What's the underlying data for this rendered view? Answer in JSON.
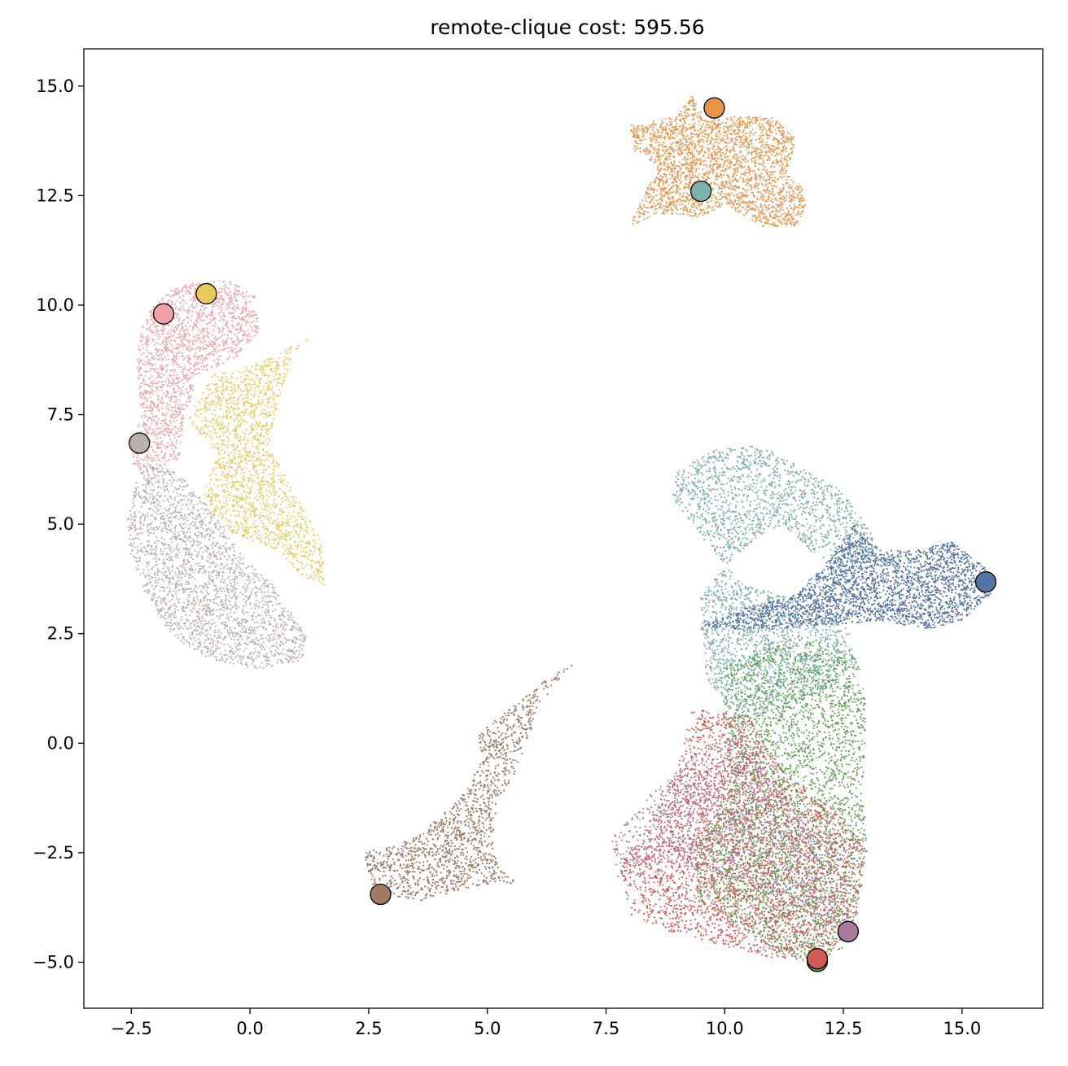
{
  "chart_data": {
    "type": "scatter",
    "title": "remote-clique cost: 595.56",
    "xlabel": "",
    "ylabel": "",
    "xlim": [
      -3.5,
      16.7
    ],
    "ylim": [
      -6.05,
      15.85
    ],
    "xticks": [
      -2.5,
      0.0,
      2.5,
      5.0,
      7.5,
      10.0,
      12.5,
      15.0
    ],
    "xtick_labels": [
      "−2.5",
      "0.0",
      "2.5",
      "5.0",
      "7.5",
      "10.0",
      "12.5",
      "15.0"
    ],
    "yticks": [
      -5.0,
      -2.5,
      0.0,
      2.5,
      5.0,
      7.5,
      10.0,
      12.5,
      15.0
    ],
    "ytick_labels": [
      "−5.0",
      "−2.5",
      "0.0",
      "2.5",
      "5.0",
      "7.5",
      "10.0",
      "12.5",
      "15.0"
    ],
    "grid": false,
    "legend": "none",
    "clusters": [
      {
        "color": "#e8954a",
        "region": [
          [
            8.0,
            14.1
          ],
          [
            9.0,
            14.3
          ],
          [
            9.3,
            14.8
          ],
          [
            9.6,
            14.2
          ],
          [
            10.2,
            14.3
          ],
          [
            11.0,
            14.3
          ],
          [
            11.5,
            13.8
          ],
          [
            11.3,
            13.0
          ],
          [
            11.7,
            12.6
          ],
          [
            11.7,
            12.2
          ],
          [
            11.5,
            11.8
          ],
          [
            10.8,
            11.8
          ],
          [
            10.0,
            12.3
          ],
          [
            9.5,
            12.0
          ],
          [
            8.6,
            12.1
          ],
          [
            8.0,
            11.8
          ],
          [
            8.3,
            12.5
          ],
          [
            8.6,
            13.2
          ],
          [
            8.1,
            13.5
          ]
        ],
        "count": 2600
      },
      {
        "color": "#f0a2a7",
        "region": [
          [
            -2.2,
            9.8
          ],
          [
            -1.6,
            10.4
          ],
          [
            -0.7,
            10.6
          ],
          [
            -0.3,
            10.5
          ],
          [
            0.1,
            10.2
          ],
          [
            0.2,
            9.4
          ],
          [
            -0.3,
            8.8
          ],
          [
            -1.1,
            8.4
          ],
          [
            -1.4,
            7.3
          ],
          [
            -1.5,
            6.5
          ],
          [
            -2.1,
            6.2
          ],
          [
            -2.5,
            6.4
          ],
          [
            -2.3,
            7.6
          ],
          [
            -2.4,
            8.8
          ]
        ],
        "count": 1700
      },
      {
        "color": "#e8c95a",
        "region": [
          [
            -0.8,
            8.4
          ],
          [
            0.0,
            8.6
          ],
          [
            0.6,
            8.9
          ],
          [
            1.3,
            9.3
          ],
          [
            1.7,
            9.7
          ],
          [
            0.9,
            8.9
          ],
          [
            0.6,
            7.8
          ],
          [
            0.4,
            6.8
          ],
          [
            1.0,
            5.6
          ],
          [
            1.5,
            4.6
          ],
          [
            1.6,
            3.6
          ],
          [
            1.1,
            3.8
          ],
          [
            0.6,
            4.4
          ],
          [
            -0.4,
            4.8
          ],
          [
            -1.0,
            5.6
          ],
          [
            -0.7,
            6.6
          ],
          [
            -1.3,
            7.4
          ]
        ],
        "count": 1700
      },
      {
        "color": "#b9b0ab",
        "region": [
          [
            -2.6,
            5.0
          ],
          [
            -2.3,
            6.4
          ],
          [
            -1.5,
            6.2
          ],
          [
            -0.8,
            5.3
          ],
          [
            -0.1,
            4.2
          ],
          [
            0.6,
            3.5
          ],
          [
            1.2,
            2.4
          ],
          [
            1.1,
            1.9
          ],
          [
            0.2,
            1.7
          ],
          [
            -0.8,
            1.9
          ],
          [
            -1.6,
            2.4
          ],
          [
            -2.2,
            3.4
          ],
          [
            -2.5,
            4.2
          ]
        ],
        "count": 2300
      },
      {
        "color": "#a07a62",
        "region": [
          [
            2.4,
            -2.5
          ],
          [
            3.4,
            -2.2
          ],
          [
            4.4,
            -1.3
          ],
          [
            4.9,
            -0.4
          ],
          [
            4.8,
            0.2
          ],
          [
            5.5,
            0.8
          ],
          [
            6.3,
            1.5
          ],
          [
            6.8,
            1.8
          ],
          [
            6.1,
            0.9
          ],
          [
            5.7,
            -0.4
          ],
          [
            5.2,
            -1.5
          ],
          [
            5.1,
            -2.5
          ],
          [
            5.6,
            -3.2
          ],
          [
            4.6,
            -3.3
          ],
          [
            3.6,
            -3.6
          ],
          [
            2.6,
            -3.4
          ]
        ],
        "count": 2300
      },
      {
        "color": "#7fb1ad",
        "region": [
          [
            9.0,
            6.2
          ],
          [
            9.8,
            6.7
          ],
          [
            10.7,
            6.8
          ],
          [
            11.6,
            6.3
          ],
          [
            12.4,
            5.8
          ],
          [
            13.0,
            5.0
          ],
          [
            13.3,
            4.3
          ],
          [
            12.5,
            4.0
          ],
          [
            11.8,
            4.4
          ],
          [
            11.2,
            5.0
          ],
          [
            10.6,
            4.6
          ],
          [
            10.0,
            4.0
          ],
          [
            9.5,
            3.5
          ],
          [
            9.5,
            2.7
          ],
          [
            9.6,
            1.5
          ],
          [
            10.2,
            0.5
          ],
          [
            11.2,
            0.8
          ],
          [
            12.1,
            1.2
          ],
          [
            12.8,
            1.7
          ],
          [
            12.6,
            2.6
          ],
          [
            11.5,
            3.3
          ],
          [
            10.4,
            3.6
          ],
          [
            9.6,
            4.6
          ],
          [
            8.9,
            5.6
          ]
        ],
        "count": 4400
      },
      {
        "color": "#5574a5",
        "region": [
          [
            9.5,
            2.7
          ],
          [
            10.5,
            3.1
          ],
          [
            11.5,
            3.4
          ],
          [
            12.3,
            4.3
          ],
          [
            12.7,
            5.0
          ],
          [
            13.3,
            4.4
          ],
          [
            14.0,
            4.4
          ],
          [
            14.8,
            4.6
          ],
          [
            15.5,
            4.0
          ],
          [
            15.6,
            3.4
          ],
          [
            15.0,
            2.8
          ],
          [
            14.3,
            2.6
          ],
          [
            13.3,
            2.8
          ],
          [
            12.2,
            2.7
          ],
          [
            11.0,
            2.6
          ],
          [
            10.0,
            2.6
          ]
        ],
        "count": 3600
      },
      {
        "color": "#5ea052",
        "region": [
          [
            10.0,
            1.8
          ],
          [
            11.0,
            2.2
          ],
          [
            12.0,
            2.4
          ],
          [
            12.8,
            1.9
          ],
          [
            13.0,
            0.8
          ],
          [
            12.9,
            -1.0
          ],
          [
            13.0,
            -2.2
          ],
          [
            12.8,
            -3.6
          ],
          [
            12.6,
            -4.6
          ],
          [
            12.0,
            -5.0
          ],
          [
            11.2,
            -4.8
          ],
          [
            10.3,
            -4.2
          ],
          [
            9.4,
            -3.6
          ],
          [
            9.4,
            -2.4
          ],
          [
            10.1,
            -1.0
          ],
          [
            10.0,
            0.4
          ]
        ],
        "count": 3800
      },
      {
        "color": "#d15a54",
        "region": [
          [
            9.3,
            0.8
          ],
          [
            10.5,
            0.6
          ],
          [
            11.2,
            -0.6
          ],
          [
            12.2,
            -1.4
          ],
          [
            13.0,
            -2.4
          ],
          [
            12.8,
            -3.9
          ],
          [
            12.1,
            -5.0
          ],
          [
            11.0,
            -4.9
          ],
          [
            9.9,
            -4.6
          ],
          [
            8.8,
            -4.3
          ],
          [
            8.0,
            -3.9
          ],
          [
            7.8,
            -2.8
          ],
          [
            8.5,
            -1.6
          ],
          [
            9.0,
            -0.6
          ]
        ],
        "count": 4000
      },
      {
        "color": "#a87b9e",
        "region": [
          [
            7.6,
            -2.2
          ],
          [
            8.4,
            -1.2
          ],
          [
            9.2,
            -0.4
          ],
          [
            10.4,
            0.2
          ],
          [
            11.5,
            -1.5
          ],
          [
            12.5,
            -2.6
          ],
          [
            12.6,
            -4.2
          ],
          [
            11.8,
            -4.0
          ],
          [
            10.5,
            -3.2
          ],
          [
            9.2,
            -2.8
          ],
          [
            8.2,
            -2.8
          ],
          [
            7.8,
            -3.3
          ]
        ],
        "count": 1300
      }
    ],
    "centers": [
      {
        "x": 9.78,
        "y": 14.5,
        "color": "#e8954a"
      },
      {
        "x": 9.5,
        "y": 12.6,
        "color": "#7fb1ad"
      },
      {
        "x": -1.82,
        "y": 9.8,
        "color": "#f0a2a7"
      },
      {
        "x": -0.92,
        "y": 10.26,
        "color": "#e8c95a"
      },
      {
        "x": -2.33,
        "y": 6.85,
        "color": "#b9b0ab"
      },
      {
        "x": 15.5,
        "y": 3.68,
        "color": "#5574a5"
      },
      {
        "x": 2.75,
        "y": -3.45,
        "color": "#a07a62"
      },
      {
        "x": 11.95,
        "y": -4.98,
        "color": "#5ea052"
      },
      {
        "x": 12.6,
        "y": -4.3,
        "color": "#a87b9e"
      },
      {
        "x": 11.95,
        "y": -4.92,
        "color": "#d15a54"
      }
    ]
  }
}
